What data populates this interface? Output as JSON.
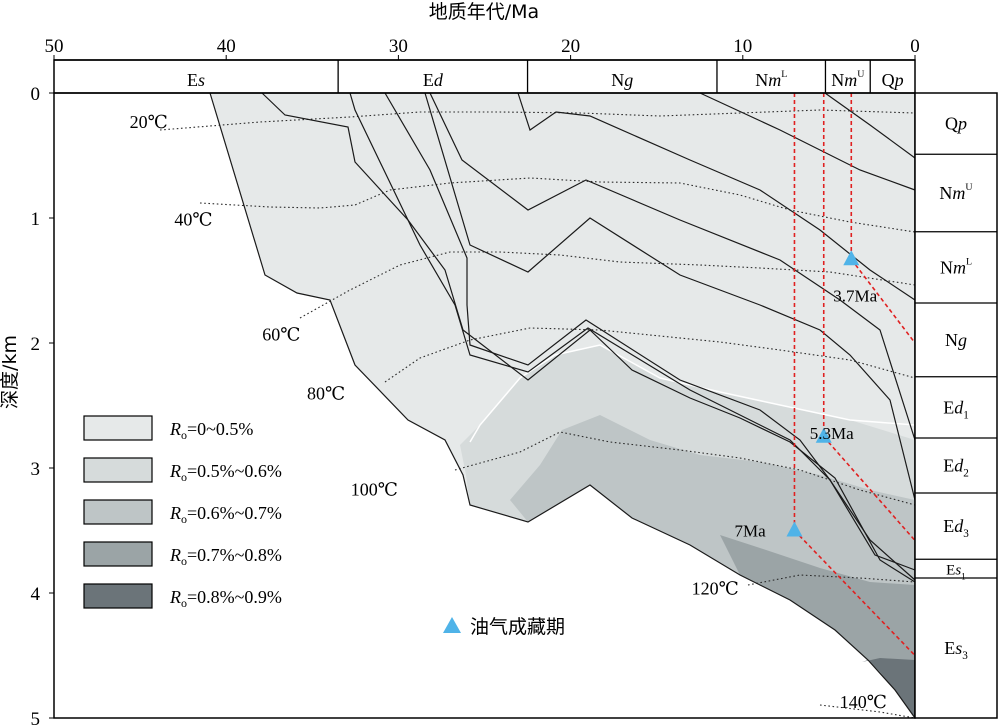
{
  "chart_data": {
    "type": "area",
    "title": "",
    "xlabel": "地质年代/Ma",
    "ylabel": "深度/km",
    "xlim": [
      50,
      0
    ],
    "ylim": [
      0,
      5
    ],
    "xticks": [
      "50",
      "40",
      "30",
      "20",
      "10",
      "0"
    ],
    "yticks": [
      "0",
      "1",
      "2",
      "3",
      "4",
      "5"
    ],
    "legend_position": "bottom-left",
    "periods": [
      {
        "label": "Es",
        "start": 50,
        "end": 33.5
      },
      {
        "label": "Ed",
        "start": 33.5,
        "end": 22.5
      },
      {
        "label": "Ng",
        "start": 22.5,
        "end": 11.5
      },
      {
        "label": "NmL",
        "start": 11.5,
        "end": 5.2
      },
      {
        "label": "NmU",
        "start": 5.2,
        "end": 2.6
      },
      {
        "label": "Qp",
        "start": 2.6,
        "end": 0
      }
    ],
    "present_strata": [
      {
        "label": "Qp",
        "top": 0,
        "base": 0.49
      },
      {
        "label": "NmU",
        "top": 0.49,
        "base": 1.11
      },
      {
        "label": "NmL",
        "top": 1.11,
        "base": 1.68
      },
      {
        "label": "Ng",
        "top": 1.68,
        "base": 2.27
      },
      {
        "label": "Ed1",
        "top": 2.27,
        "base": 2.76
      },
      {
        "label": "Ed2",
        "top": 2.76,
        "base": 3.2
      },
      {
        "label": "Ed3",
        "top": 3.2,
        "base": 3.73
      },
      {
        "label": "Es1",
        "top": 3.73,
        "base": 3.88
      },
      {
        "label": "Es3",
        "top": 3.88,
        "base": 5.0
      }
    ],
    "isotherms": [
      {
        "label": "20℃",
        "label_x": 44.5,
        "label_y": 0.28
      },
      {
        "label": "40℃",
        "label_x": 41.9,
        "label_y": 1.06
      },
      {
        "label": "60℃",
        "label_x": 36.8,
        "label_y": 1.98
      },
      {
        "label": "80℃",
        "label_x": 34.2,
        "label_y": 2.45
      },
      {
        "label": "100℃",
        "label_x": 31.4,
        "label_y": 3.22
      },
      {
        "label": "120℃",
        "label_x": 11.6,
        "label_y": 4.01
      },
      {
        "label": "140℃",
        "label_x": 3.0,
        "label_y": 4.92
      }
    ],
    "maturity_zones": [
      {
        "label": "Ro=0~0.5%",
        "color": "#e6e9e9"
      },
      {
        "label": "Ro=0.5%~0.6%",
        "color": "#d6dbdb"
      },
      {
        "label": "Ro=0.6%~0.7%",
        "color": "#bec5c6"
      },
      {
        "label": "Ro=0.7%~0.8%",
        "color": "#9ba4a6"
      },
      {
        "label": "Ro=0.8%~0.9%",
        "color": "#6b7479"
      }
    ],
    "accumulation_events": [
      {
        "label": "3.7Ma",
        "age": 3.7,
        "depth": 1.33
      },
      {
        "label": "5.3Ma",
        "age": 5.3,
        "depth": 2.75
      },
      {
        "label": "7Ma",
        "age": 7.0,
        "depth": 3.5
      }
    ],
    "event_legend_label": "油气成藏期",
    "event_color": "#4fb3e8",
    "event_line_color": "#e02020"
  }
}
